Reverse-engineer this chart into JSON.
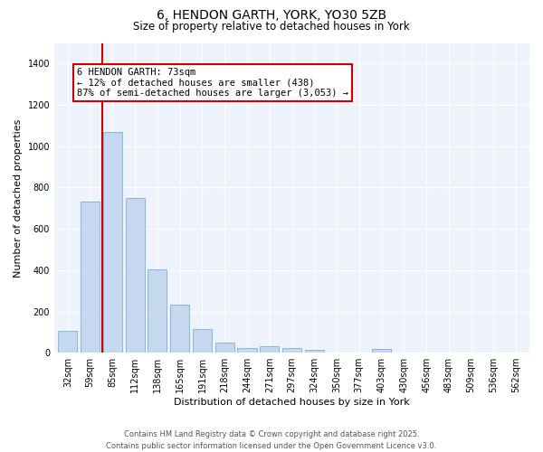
{
  "title1": "6, HENDON GARTH, YORK, YO30 5ZB",
  "title2": "Size of property relative to detached houses in York",
  "xlabel": "Distribution of detached houses by size in York",
  "ylabel": "Number of detached properties",
  "categories": [
    "32sqm",
    "59sqm",
    "85sqm",
    "112sqm",
    "138sqm",
    "165sqm",
    "191sqm",
    "218sqm",
    "244sqm",
    "271sqm",
    "297sqm",
    "324sqm",
    "350sqm",
    "377sqm",
    "403sqm",
    "430sqm",
    "456sqm",
    "483sqm",
    "509sqm",
    "536sqm",
    "562sqm"
  ],
  "values": [
    105,
    730,
    1070,
    750,
    405,
    235,
    115,
    50,
    22,
    30,
    22,
    15,
    0,
    0,
    20,
    0,
    0,
    0,
    0,
    0,
    0
  ],
  "bar_color": "#c5d8f0",
  "bar_edge_color": "#7aafd4",
  "vline_x": 1.55,
  "vline_color": "#cc0000",
  "annotation_text": "6 HENDON GARTH: 73sqm\n← 12% of detached houses are smaller (438)\n87% of semi-detached houses are larger (3,053) →",
  "annotation_box_color": "#cc0000",
  "ylim": [
    0,
    1500
  ],
  "yticks": [
    0,
    200,
    400,
    600,
    800,
    1000,
    1200,
    1400
  ],
  "background_color": "#eef2fb",
  "footer": "Contains HM Land Registry data © Crown copyright and database right 2025.\nContains public sector information licensed under the Open Government Licence v3.0.",
  "title1_fontsize": 10,
  "title2_fontsize": 8.5,
  "xlabel_fontsize": 8,
  "ylabel_fontsize": 8,
  "tick_fontsize": 7,
  "footer_fontsize": 6,
  "ann_fontsize": 7.5
}
